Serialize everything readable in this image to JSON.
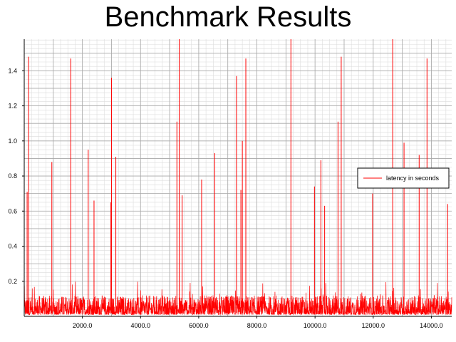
{
  "chart_data": {
    "type": "line",
    "title": "Benchmark Results",
    "xlabel": "",
    "ylabel": "",
    "xlim": [
      0,
      14700
    ],
    "ylim": [
      0,
      1.58
    ],
    "x_ticks": [
      2000,
      4000,
      6000,
      8000,
      10000,
      12000,
      14000
    ],
    "x_tick_labels": [
      "2000.0",
      "4000.0",
      "6000.0",
      "8000.0",
      "10000.0",
      "12000.0",
      "14000.0"
    ],
    "y_ticks": [
      0.2,
      0.4,
      0.6,
      0.8,
      1.0,
      1.2,
      1.4
    ],
    "y_tick_labels": [
      "0.2",
      "0.4",
      "0.6",
      "0.8",
      "1.0",
      "1.2",
      "1.4"
    ],
    "grid": true,
    "legend": {
      "position": "right",
      "entries": [
        "latency in seconds"
      ]
    },
    "series": [
      {
        "name": "latency in seconds",
        "color": "#ff0000",
        "baseline_range": [
          0.01,
          0.12
        ],
        "spikes": [
          {
            "x": 100,
            "y": 0.71
          },
          {
            "x": 150,
            "y": 1.48
          },
          {
            "x": 950,
            "y": 0.88
          },
          {
            "x": 1600,
            "y": 1.47
          },
          {
            "x": 2200,
            "y": 0.95
          },
          {
            "x": 2400,
            "y": 0.66
          },
          {
            "x": 2980,
            "y": 0.65
          },
          {
            "x": 3000,
            "y": 1.36
          },
          {
            "x": 3150,
            "y": 0.91
          },
          {
            "x": 5250,
            "y": 1.11
          },
          {
            "x": 5330,
            "y": 1.58
          },
          {
            "x": 5430,
            "y": 0.69
          },
          {
            "x": 6100,
            "y": 0.78
          },
          {
            "x": 6550,
            "y": 0.93
          },
          {
            "x": 7300,
            "y": 1.37
          },
          {
            "x": 7450,
            "y": 0.72
          },
          {
            "x": 7500,
            "y": 1.0
          },
          {
            "x": 7620,
            "y": 1.47
          },
          {
            "x": 9170,
            "y": 1.58
          },
          {
            "x": 9980,
            "y": 0.74
          },
          {
            "x": 10200,
            "y": 0.89
          },
          {
            "x": 10330,
            "y": 0.63
          },
          {
            "x": 10790,
            "y": 1.11
          },
          {
            "x": 10900,
            "y": 1.48
          },
          {
            "x": 11980,
            "y": 0.7
          },
          {
            "x": 12670,
            "y": 1.58
          },
          {
            "x": 13060,
            "y": 0.99
          },
          {
            "x": 13580,
            "y": 0.92
          },
          {
            "x": 13850,
            "y": 1.47
          },
          {
            "x": 14560,
            "y": 0.64
          }
        ]
      }
    ]
  }
}
